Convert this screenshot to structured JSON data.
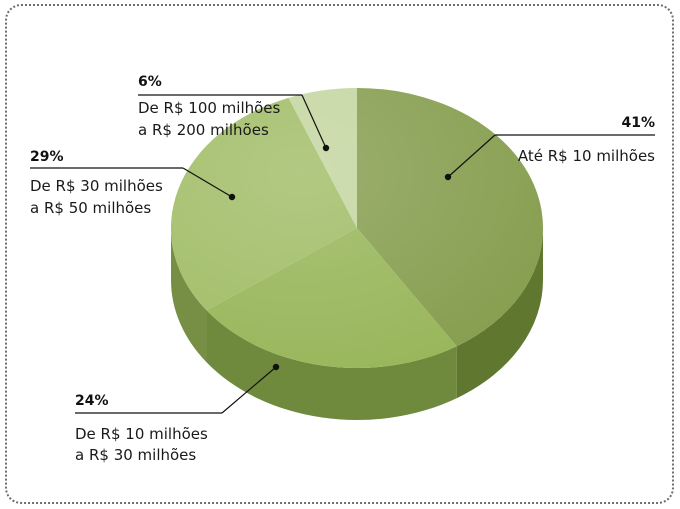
{
  "colors": {
    "slice_top": [
      "#869e4f",
      "#98b65a",
      "#a1bd67",
      "#c4d6a0"
    ],
    "slice_side": [
      "#60772f",
      "#6f8a3c",
      "#778f44",
      "#8fa769"
    ]
  },
  "chart_data": {
    "type": "pie",
    "values": [
      41,
      24,
      29,
      6
    ],
    "slices": [
      {
        "value": 41,
        "pct_label": "41%",
        "label_lines": [
          "Até R$ 10 milhões"
        ]
      },
      {
        "value": 24,
        "pct_label": "24%",
        "label_lines": [
          "De R$ 10 milhões",
          "a R$ 30 milhões"
        ]
      },
      {
        "value": 29,
        "pct_label": "29%",
        "label_lines": [
          "De R$ 30 milhões",
          "a R$ 50 milhões"
        ]
      },
      {
        "value": 6,
        "pct_label": "6%",
        "label_lines": [
          "De R$ 100 milhões",
          "a R$ 200 milhões"
        ]
      }
    ],
    "title": "",
    "legend": "none"
  }
}
